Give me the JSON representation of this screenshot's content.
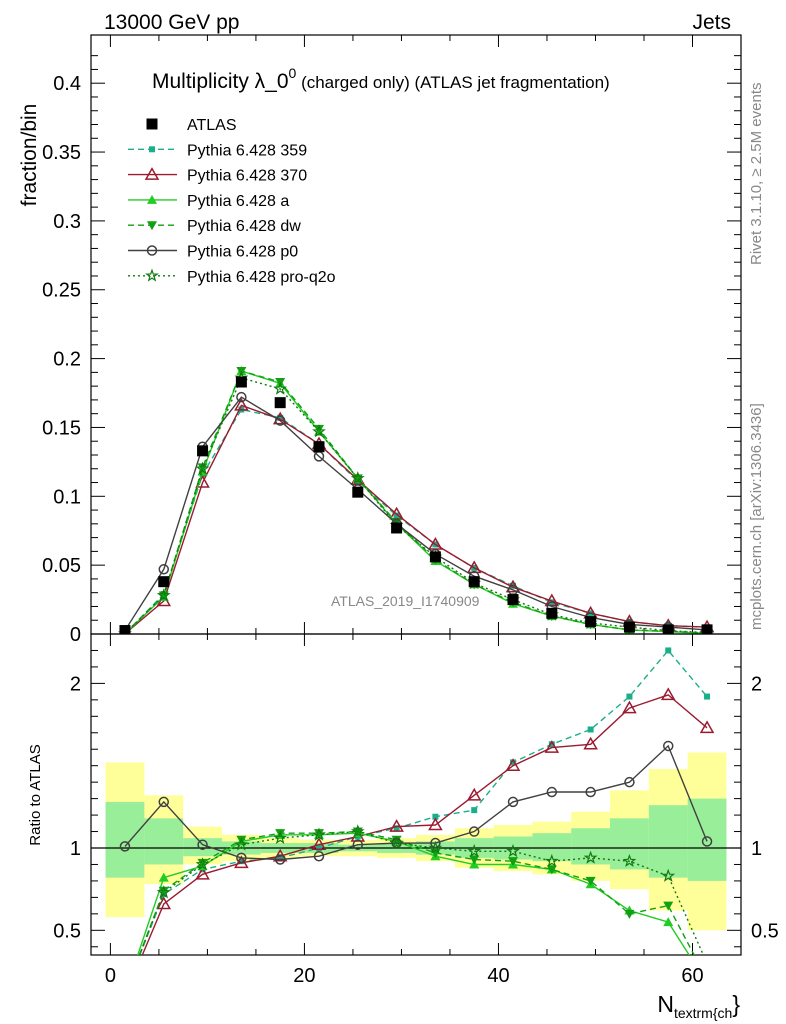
{
  "header": {
    "left": "13000 GeV pp",
    "right": "Jets"
  },
  "side": {
    "rivet": "Rivet 3.1.10, ≥ 2.5M events",
    "mcplots": "mcplots.cern.ch [arXiv:1306.3436]"
  },
  "watermark": "ATLAS_2019_I1740909",
  "chart_data": [
    {
      "type": "line",
      "title_main": "Multiplicity λ_0",
      "title_sup": "0",
      "title_rest": " (charged only) (ATLAS jet fragmentation)",
      "ylabel": "fraction/bin",
      "xlabel": "",
      "xlim": [
        -2,
        65
      ],
      "ylim": [
        0,
        0.435
      ],
      "yticks": [
        0,
        0.05,
        0.1,
        0.15,
        0.2,
        0.25,
        0.3,
        0.35,
        0.4
      ],
      "ytick_labels": [
        "0",
        "0.05",
        "0.1",
        "0.15",
        "0.2",
        "0.25",
        "0.3",
        "0.35",
        "0.4"
      ],
      "grid": false,
      "legend_position": "top-left",
      "x": [
        1.5,
        5.5,
        9.5,
        13.5,
        17.5,
        21.5,
        25.5,
        29.5,
        33.5,
        37.5,
        41.5,
        45.5,
        49.5,
        53.5,
        57.5,
        61.5
      ],
      "series": [
        {
          "name": "ATLAS",
          "color": "#000000",
          "marker": "square",
          "line": "none",
          "values": [
            0.0025,
            0.038,
            0.133,
            0.183,
            0.168,
            0.136,
            0.103,
            0.077,
            0.056,
            0.038,
            0.025,
            0.015,
            0.009,
            0.005,
            0.003,
            0.003
          ]
        },
        {
          "name": "Pythia 6.428 359",
          "color": "#1aaf8a",
          "marker": "square-small",
          "line": "dashed",
          "values": [
            0.0003,
            0.029,
            0.116,
            0.163,
            0.157,
            0.138,
            0.111,
            0.086,
            0.065,
            0.048,
            0.035,
            0.023,
            0.015,
            0.009,
            0.006,
            0.005
          ]
        },
        {
          "name": "Pythia 6.428 370",
          "color": "#9b1b30",
          "marker": "open-triangle",
          "line": "solid",
          "values": [
            0.0002,
            0.024,
            0.11,
            0.166,
            0.156,
            0.138,
            0.112,
            0.087,
            0.065,
            0.048,
            0.034,
            0.024,
            0.015,
            0.009,
            0.006,
            0.005
          ]
        },
        {
          "name": "Pythia 6.428 a",
          "color": "#22cc22",
          "marker": "triangle",
          "line": "solid",
          "values": [
            0.0003,
            0.027,
            0.118,
            0.191,
            0.182,
            0.147,
            0.113,
            0.08,
            0.053,
            0.036,
            0.022,
            0.013,
            0.007,
            0.003,
            0.0017,
            0.0005
          ]
        },
        {
          "name": "Pythia 6.428 dw",
          "color": "#11a011",
          "marker": "triangle-down",
          "line": "dashed",
          "values": [
            0.0003,
            0.028,
            0.121,
            0.191,
            0.183,
            0.149,
            0.113,
            0.081,
            0.054,
            0.036,
            0.023,
            0.013,
            0.007,
            0.003,
            0.002,
            0.0007
          ]
        },
        {
          "name": "Pythia 6.428 p0",
          "color": "#404040",
          "marker": "open-circle",
          "line": "solid",
          "values": [
            0.0026,
            0.047,
            0.136,
            0.172,
            0.155,
            0.129,
            0.105,
            0.08,
            0.058,
            0.042,
            0.032,
            0.02,
            0.012,
            0.007,
            0.005,
            0.003
          ]
        },
        {
          "name": "Pythia 6.428 pro-q2o",
          "color": "#117a11",
          "marker": "open-star",
          "line": "dotted",
          "values": [
            0.0003,
            0.028,
            0.12,
            0.186,
            0.178,
            0.147,
            0.113,
            0.079,
            0.056,
            0.037,
            0.025,
            0.014,
            0.008,
            0.005,
            0.0025,
            0.001
          ]
        }
      ]
    },
    {
      "type": "line",
      "ylabel": "Ratio to ATLAS",
      "xlabel_main": "N",
      "xlabel_sub": "textrm{ch",
      "xlabel_close": "}",
      "xlim": [
        -2,
        65
      ],
      "ylim": [
        0.35,
        2.3
      ],
      "yticks": [
        0.5,
        1,
        2
      ],
      "ytick_labels": [
        "0.5",
        "1",
        "2"
      ],
      "xticks": [
        0,
        20,
        40,
        60
      ],
      "xtick_labels": [
        "0",
        "20",
        "40",
        "60"
      ],
      "x": [
        1.5,
        5.5,
        9.5,
        13.5,
        17.5,
        21.5,
        25.5,
        29.5,
        33.5,
        37.5,
        41.5,
        45.5,
        49.5,
        53.5,
        57.5,
        61.5
      ],
      "band_yellow": [
        [
          0.58,
          1.52
        ],
        [
          0.78,
          1.32
        ],
        [
          0.9,
          1.13
        ],
        [
          0.92,
          1.08
        ],
        [
          0.94,
          1.06
        ],
        [
          0.95,
          1.05
        ],
        [
          0.95,
          1.05
        ],
        [
          0.94,
          1.06
        ],
        [
          0.92,
          1.08
        ],
        [
          0.88,
          1.12
        ],
        [
          0.86,
          1.14
        ],
        [
          0.84,
          1.16
        ],
        [
          0.8,
          1.22
        ],
        [
          0.75,
          1.35
        ],
        [
          0.62,
          1.48
        ],
        [
          0.5,
          1.58
        ]
      ],
      "band_green": [
        [
          0.82,
          1.28
        ],
        [
          0.9,
          1.18
        ],
        [
          0.95,
          1.06
        ],
        [
          0.96,
          1.04
        ],
        [
          0.97,
          1.03
        ],
        [
          0.97,
          1.03
        ],
        [
          0.98,
          1.02
        ],
        [
          0.97,
          1.03
        ],
        [
          0.96,
          1.04
        ],
        [
          0.94,
          1.06
        ],
        [
          0.93,
          1.07
        ],
        [
          0.92,
          1.09
        ],
        [
          0.9,
          1.12
        ],
        [
          0.87,
          1.18
        ],
        [
          0.82,
          1.26
        ],
        [
          0.8,
          1.3
        ]
      ],
      "series": [
        {
          "name": "Pythia 6.428 359",
          "color": "#1aaf8a",
          "marker": "square-small",
          "line": "dashed",
          "values": [
            0.12,
            0.72,
            0.87,
            0.92,
            0.94,
            1.0,
            1.07,
            1.12,
            1.19,
            1.23,
            1.52,
            1.63,
            1.72,
            1.92,
            2.2,
            1.92
          ]
        },
        {
          "name": "Pythia 6.428 370",
          "color": "#9b1b30",
          "marker": "open-triangle",
          "line": "solid",
          "values": [
            0.1,
            0.66,
            0.84,
            0.91,
            0.95,
            1.02,
            1.07,
            1.13,
            1.14,
            1.32,
            1.5,
            1.61,
            1.63,
            1.85,
            1.93,
            1.73
          ]
        },
        {
          "name": "Pythia 6.428 a",
          "color": "#22cc22",
          "marker": "triangle",
          "line": "solid",
          "values": [
            0.12,
            0.82,
            0.89,
            1.04,
            1.08,
            1.08,
            1.09,
            1.04,
            0.95,
            0.9,
            0.9,
            0.87,
            0.78,
            0.62,
            0.55,
            0.18
          ]
        },
        {
          "name": "Pythia 6.428 dw",
          "color": "#11a011",
          "marker": "triangle-down",
          "line": "dashed",
          "values": [
            0.12,
            0.74,
            0.91,
            1.05,
            1.09,
            1.09,
            1.1,
            1.05,
            0.97,
            0.93,
            0.92,
            0.87,
            0.8,
            0.6,
            0.65,
            0.2
          ]
        },
        {
          "name": "Pythia 6.428 p0",
          "color": "#404040",
          "marker": "open-circle",
          "line": "solid",
          "values": [
            1.01,
            1.28,
            1.02,
            0.94,
            0.93,
            0.95,
            1.02,
            1.03,
            1.03,
            1.1,
            1.28,
            1.34,
            1.34,
            1.4,
            1.62,
            1.04
          ]
        },
        {
          "name": "Pythia 6.428 pro-q2o",
          "color": "#117a11",
          "marker": "open-star",
          "line": "dotted",
          "values": [
            0.12,
            0.73,
            0.9,
            1.02,
            1.06,
            1.08,
            1.1,
            1.03,
            1.0,
            0.98,
            0.98,
            0.92,
            0.94,
            0.92,
            0.83,
            0.3
          ]
        }
      ]
    }
  ]
}
